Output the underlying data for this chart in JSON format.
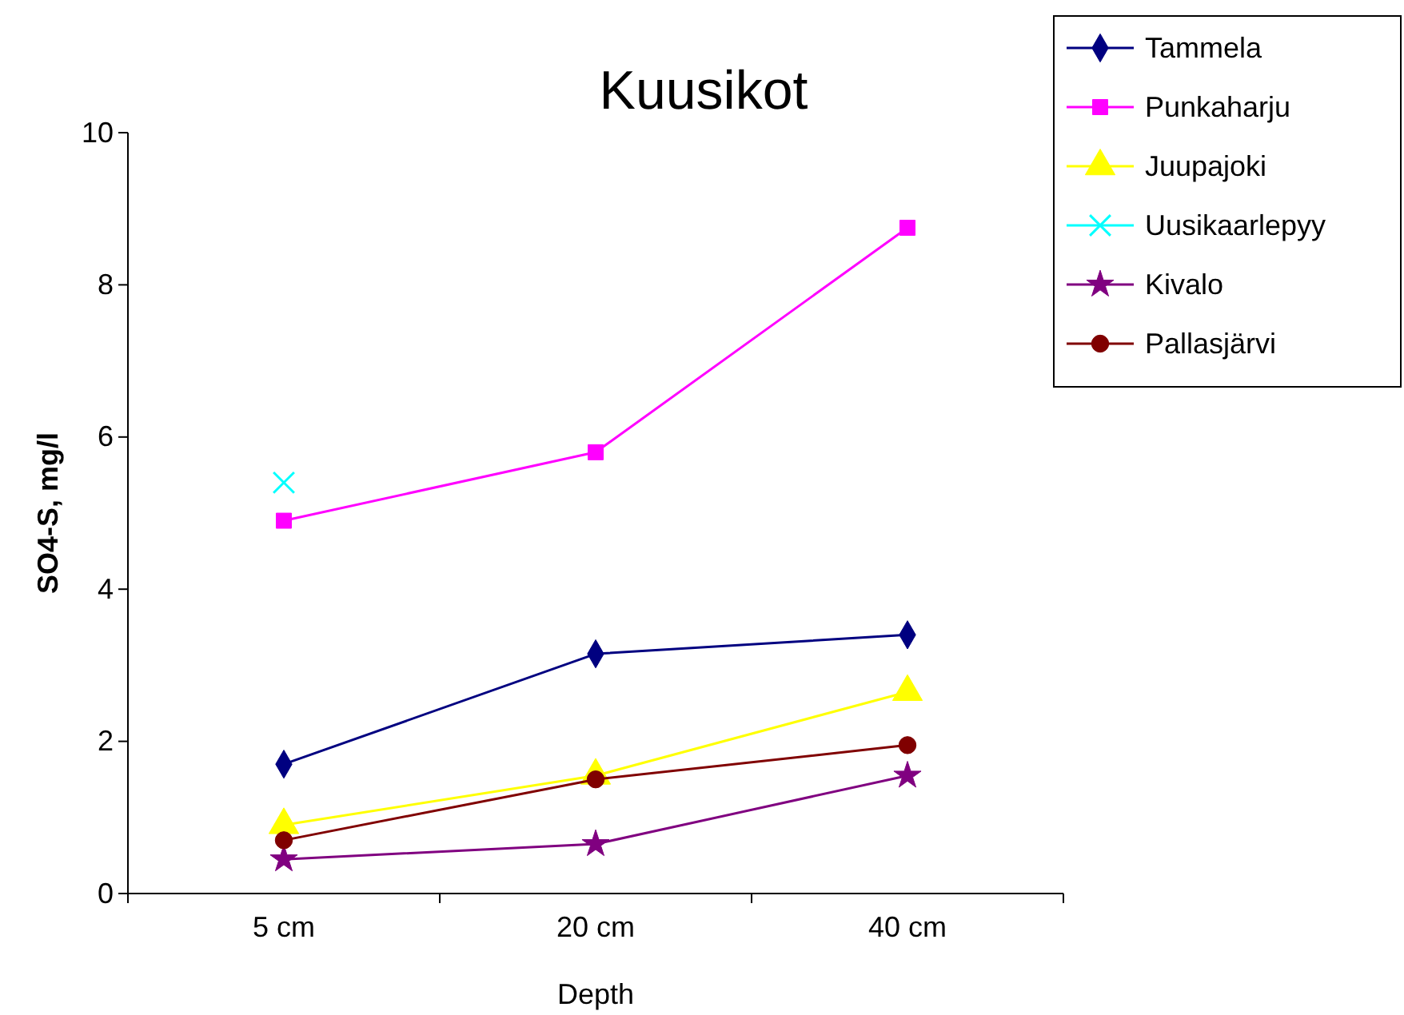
{
  "chart_data": {
    "type": "line",
    "title": "Kuusikot",
    "xlabel": "Depth",
    "ylabel": "SO4-S, mg/l",
    "categories": [
      "5 cm",
      "20 cm",
      "40 cm"
    ],
    "series": [
      {
        "name": "Tammela",
        "color": "#000080",
        "marker": "diamond",
        "values": [
          1.7,
          3.15,
          3.4
        ]
      },
      {
        "name": "Punkaharju",
        "color": "#ff00ff",
        "marker": "square",
        "values": [
          4.9,
          5.8,
          8.75
        ]
      },
      {
        "name": "Juupajoki",
        "color": "#ffff00",
        "marker": "triangle",
        "values": [
          0.9,
          1.55,
          2.65
        ]
      },
      {
        "name": "Uusikaarlepyy",
        "color": "#00ffff",
        "marker": "cross",
        "values": [
          5.4,
          null,
          null
        ]
      },
      {
        "name": "Kivalo",
        "color": "#800080",
        "marker": "star",
        "values": [
          0.45,
          0.65,
          1.55
        ]
      },
      {
        "name": "Pallasjärvi",
        "color": "#800000",
        "marker": "circle",
        "values": [
          0.7,
          1.5,
          1.95
        ]
      }
    ],
    "ylim": [
      0,
      10
    ],
    "yticks": [
      0,
      2,
      4,
      6,
      8,
      10
    ],
    "grid": false,
    "legend": "top right",
    "line_style": "solid"
  }
}
